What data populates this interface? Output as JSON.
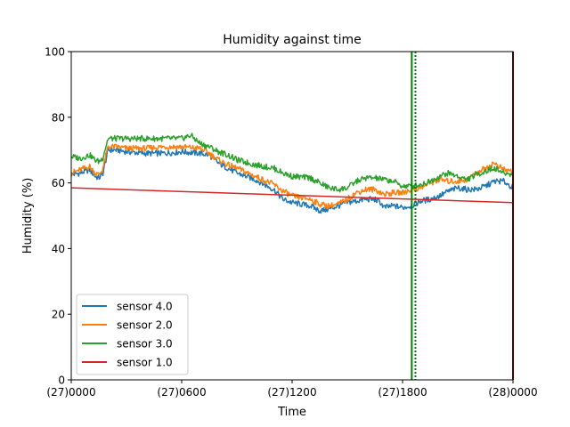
{
  "chart_data": {
    "type": "line",
    "title": "Humidity against  time",
    "xlabel": "Time",
    "ylabel": "Humidity (%)",
    "x_unit": "hour of day 27 (24 = start of day 28)",
    "xlim": [
      0,
      24
    ],
    "ylim": [
      0,
      100
    ],
    "xticks": [
      {
        "value": 0,
        "label": "(27)0000"
      },
      {
        "value": 6,
        "label": "(27)0600"
      },
      {
        "value": 12,
        "label": "(27)1200"
      },
      {
        "value": 18,
        "label": "(27)1800"
      },
      {
        "value": 24,
        "label": "(28)0000"
      }
    ],
    "yticks": [
      0,
      20,
      40,
      60,
      80,
      100
    ],
    "grid": false,
    "legend_position": "lower-left",
    "series": [
      {
        "name": "sensor 4.0",
        "color": "#1f77b4",
        "x": [
          0,
          0.5,
          1.0,
          1.3,
          1.5,
          1.7,
          2.0,
          2.5,
          3,
          4,
          5,
          6,
          7,
          7.5,
          8,
          8.5,
          9,
          10,
          11,
          11.5,
          12,
          13,
          13.5,
          14,
          14.5,
          15,
          15.5,
          16,
          16.5,
          16.8,
          17,
          17.5,
          18,
          18.5,
          19,
          19.5,
          20,
          20.5,
          21,
          21.5,
          22,
          22.5,
          23,
          23.5,
          24
        ],
        "y": [
          62.5,
          63,
          64,
          62,
          61.5,
          62.5,
          70,
          70,
          69.5,
          69,
          69,
          69.5,
          69,
          68.5,
          66,
          64.5,
          63,
          61,
          58,
          55,
          54,
          53,
          51.5,
          52,
          53,
          54,
          54.5,
          55,
          55,
          54,
          52.5,
          53,
          52.5,
          53,
          54.5,
          55,
          56,
          57.5,
          58.5,
          58,
          58,
          59,
          60.5,
          60.5,
          58.5
        ]
      },
      {
        "name": "sensor 2.0",
        "color": "#ff7f0e",
        "x": [
          0,
          0.5,
          1.0,
          1.3,
          1.5,
          1.7,
          2.0,
          2.5,
          3,
          4,
          5,
          6,
          7,
          7.5,
          8,
          8.5,
          9,
          10,
          11,
          11.5,
          12,
          13,
          13.5,
          14,
          14.5,
          15,
          15.5,
          16,
          16.5,
          17,
          17.5,
          18,
          18.5,
          19,
          19.5,
          20,
          20.5,
          21,
          21.5,
          22,
          22.5,
          23,
          23.5,
          24
        ],
        "y": [
          63,
          64,
          65,
          63,
          62.5,
          64,
          71,
          71,
          70.5,
          70.5,
          71,
          71,
          70.5,
          69,
          67,
          65.5,
          64.5,
          62,
          59.5,
          57.5,
          56,
          55,
          53.5,
          53,
          53.5,
          55,
          57,
          58,
          58,
          56.5,
          57,
          57,
          58,
          58.5,
          60,
          61,
          60.5,
          60.5,
          61,
          63,
          64.5,
          66,
          64,
          63.5
        ]
      },
      {
        "name": "sensor 3.0",
        "color": "#2ca02c",
        "x": [
          0,
          0.5,
          1.0,
          1.3,
          1.5,
          1.7,
          2.0,
          2.5,
          3,
          4,
          5,
          6,
          6.5,
          7,
          7.5,
          8,
          8.5,
          9,
          10,
          11,
          11.5,
          12,
          13,
          13.5,
          14,
          14.5,
          15,
          15.5,
          16,
          16.5,
          17,
          17.5,
          18,
          18.5,
          19,
          19.5,
          20,
          20.5,
          21,
          21.5,
          22,
          22.5,
          23,
          23.5,
          24
        ],
        "y": [
          68,
          67.5,
          68.5,
          67,
          66.5,
          67.5,
          73.5,
          73.5,
          73.5,
          73.5,
          73.5,
          73.5,
          74.5,
          72,
          71,
          69.5,
          68.5,
          67,
          65.5,
          64.5,
          63,
          62,
          61.5,
          60,
          58.5,
          58,
          58.5,
          60.5,
          61.5,
          61.5,
          61,
          60.5,
          59,
          59,
          59.5,
          60.5,
          62,
          63,
          62,
          61,
          62.5,
          63.5,
          64.5,
          63,
          62.5
        ]
      },
      {
        "name": "sensor 1.0",
        "color": "#d62728",
        "x": [
          0,
          24
        ],
        "y": [
          58.5,
          54
        ]
      }
    ],
    "vertical_lines": [
      {
        "x": 18.5,
        "color": "#008000",
        "style": "solid"
      },
      {
        "x": 18.7,
        "color": "#008000",
        "style": "dotted"
      },
      {
        "x": 24,
        "color": "#8b0000",
        "style": "solid"
      }
    ]
  }
}
